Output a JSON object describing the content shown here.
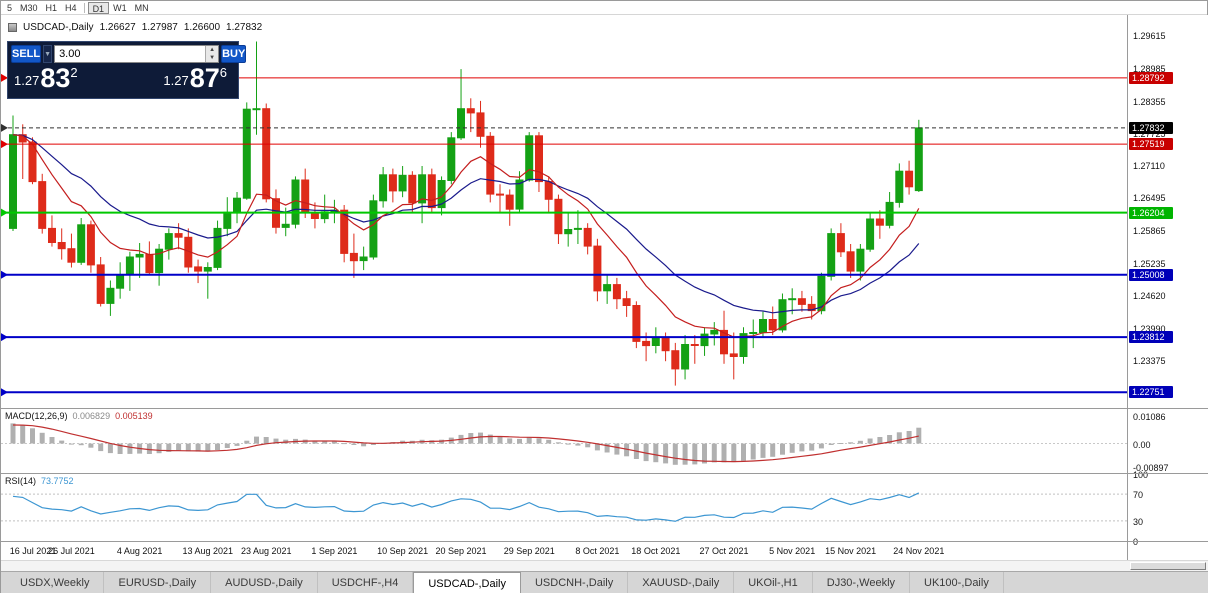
{
  "toolbar": {
    "periods": [
      {
        "label": "5"
      },
      {
        "label": "M30"
      },
      {
        "label": "H1"
      },
      {
        "label": "H4"
      },
      {
        "label": "D1",
        "active": true,
        "sep_before": true
      },
      {
        "label": "W1"
      },
      {
        "label": "MN"
      }
    ]
  },
  "chart_header": {
    "symbol": "USDCAD-,Daily",
    "open": "1.26627",
    "high": "1.27987",
    "low": "1.26600",
    "close": "1.27832"
  },
  "trade_panel": {
    "sell_label": "SELL",
    "buy_label": "BUY",
    "volume": "3.00",
    "bid": {
      "head": "1.27",
      "big": "83",
      "sup": "2"
    },
    "ask": {
      "head": "1.27",
      "big": "87",
      "sup": "6"
    }
  },
  "price_axis": {
    "labels": [
      "1.29615",
      "1.28985",
      "1.28355",
      "1.27725",
      "1.27110",
      "1.26495",
      "1.25865",
      "1.25235",
      "1.24620",
      "1.23990",
      "1.23375",
      "1.22745"
    ],
    "badges": [
      {
        "text": "1.28792",
        "color": "#C80000"
      },
      {
        "text": "1.27832",
        "color": "#000000"
      },
      {
        "text": "1.27519",
        "color": "#C80000"
      },
      {
        "text": "1.26204",
        "color": "#00B400"
      },
      {
        "text": "1.25008",
        "color": "#0000B8"
      },
      {
        "text": "1.23812",
        "color": "#0000B8"
      },
      {
        "text": "1.22751",
        "color": "#0000B8"
      }
    ]
  },
  "macd_panel": {
    "title": "MACD(12,26,9)",
    "value_main": "0.006829",
    "value_signal": "0.005139",
    "axis": [
      "0.01086",
      "0.00",
      "-0.00897"
    ]
  },
  "rsi_panel": {
    "title": "RSI(14)",
    "value": "73.7752",
    "axis": [
      "100",
      "70",
      "30",
      "0"
    ]
  },
  "x_axis": {
    "labels": [
      {
        "text": "16 Jul 2021",
        "i": 0
      },
      {
        "text": "26 Jul 2021",
        "i": 6
      },
      {
        "text": "4 Aug 2021",
        "i": 13
      },
      {
        "text": "13 Aug 2021",
        "i": 20
      },
      {
        "text": "23 Aug 2021",
        "i": 26
      },
      {
        "text": "1 Sep 2021",
        "i": 33
      },
      {
        "text": "10 Sep 2021",
        "i": 40
      },
      {
        "text": "20 Sep 2021",
        "i": 46
      },
      {
        "text": "29 Sep 2021",
        "i": 53
      },
      {
        "text": "8 Oct 2021",
        "i": 60
      },
      {
        "text": "18 Oct 2021",
        "i": 66
      },
      {
        "text": "27 Oct 2021",
        "i": 73
      },
      {
        "text": "5 Nov 2021",
        "i": 80
      },
      {
        "text": "15 Nov 2021",
        "i": 86
      },
      {
        "text": "24 Nov 2021",
        "i": 93
      }
    ]
  },
  "tabs": [
    {
      "label": "USDX,Weekly"
    },
    {
      "label": "EURUSD-,Daily"
    },
    {
      "label": "AUDUSD-,Daily"
    },
    {
      "label": "USDCHF-,H4"
    },
    {
      "label": "USDCAD-,Daily",
      "active": true
    },
    {
      "label": "USDCNH-,Daily"
    },
    {
      "label": "XAUUSD-,Daily"
    },
    {
      "label": "UKOil-,H1"
    },
    {
      "label": "DJ30-,Weekly"
    },
    {
      "label": "UK100-,Daily"
    }
  ],
  "colors": {
    "candle_up": "#14A114",
    "candle_down": "#DE2B1A",
    "macd_hist": "#B0B0B0",
    "macd_signal": "#C03030",
    "rsi_line": "#3C96D2"
  },
  "chart_data": {
    "type": "candlestick",
    "symbol": "USDCAD",
    "timeframe": "Daily",
    "title": "USDCAD-,Daily",
    "ylim": [
      1.2245,
      1.3
    ],
    "macd_range": [
      -0.0115,
      0.0135
    ],
    "levels": [
      {
        "price": 1.28792,
        "color": "#E00000",
        "width": 1
      },
      {
        "price": 1.27832,
        "color": "#303030",
        "width": 1,
        "dash": true
      },
      {
        "price": 1.27519,
        "color": "#E00000",
        "width": 1
      },
      {
        "price": 1.26204,
        "color": "#00C800",
        "width": 2
      },
      {
        "price": 1.25008,
        "color": "#0000C8",
        "width": 2
      },
      {
        "price": 1.23812,
        "color": "#0000C8",
        "width": 2
      },
      {
        "price": 1.22751,
        "color": "#0000C8",
        "width": 2
      }
    ],
    "indicators": {
      "ma_fast": {
        "period": 10,
        "color": "#C41E1E"
      },
      "ma_slow": {
        "period": 21,
        "color": "#1A1A8C"
      },
      "macd": {
        "fast": 12,
        "slow": 26,
        "signal": 9
      },
      "rsi": {
        "period": 14
      }
    },
    "ohlc": [
      [
        1.259,
        1.2807,
        1.2585,
        1.277
      ],
      [
        1.277,
        1.279,
        1.2685,
        1.2756
      ],
      [
        1.2756,
        1.2765,
        1.2675,
        1.268
      ],
      [
        1.268,
        1.2695,
        1.258,
        1.259
      ],
      [
        1.259,
        1.2615,
        1.2555,
        1.2563
      ],
      [
        1.2563,
        1.259,
        1.253,
        1.2551
      ],
      [
        1.2551,
        1.258,
        1.2515,
        1.2525
      ],
      [
        1.2525,
        1.261,
        1.252,
        1.2597
      ],
      [
        1.2597,
        1.2605,
        1.2505,
        1.252
      ],
      [
        1.252,
        1.2535,
        1.244,
        1.2446
      ],
      [
        1.2446,
        1.249,
        1.2422,
        1.2475
      ],
      [
        1.2475,
        1.2525,
        1.2455,
        1.2501
      ],
      [
        1.2501,
        1.2545,
        1.247,
        1.2535
      ],
      [
        1.2535,
        1.2562,
        1.2495,
        1.254
      ],
      [
        1.254,
        1.2565,
        1.25,
        1.2505
      ],
      [
        1.2505,
        1.256,
        1.248,
        1.255
      ],
      [
        1.255,
        1.259,
        1.253,
        1.258
      ],
      [
        1.258,
        1.26,
        1.255,
        1.2573
      ],
      [
        1.2573,
        1.259,
        1.2505,
        1.2516
      ],
      [
        1.2516,
        1.253,
        1.2485,
        1.2508
      ],
      [
        1.2508,
        1.2525,
        1.2455,
        1.2515
      ],
      [
        1.2515,
        1.2605,
        1.251,
        1.259
      ],
      [
        1.259,
        1.265,
        1.2575,
        1.2621
      ],
      [
        1.2621,
        1.266,
        1.26,
        1.2648
      ],
      [
        1.2648,
        1.2832,
        1.2645,
        1.2819
      ],
      [
        1.2819,
        1.2949,
        1.277,
        1.282
      ],
      [
        1.282,
        1.283,
        1.264,
        1.2647
      ],
      [
        1.2647,
        1.2665,
        1.258,
        1.2592
      ],
      [
        1.2592,
        1.263,
        1.2575,
        1.2598
      ],
      [
        1.2598,
        1.269,
        1.259,
        1.2683
      ],
      [
        1.2683,
        1.2705,
        1.261,
        1.262
      ],
      [
        1.262,
        1.264,
        1.259,
        1.2609
      ],
      [
        1.2609,
        1.2655,
        1.26,
        1.2622
      ],
      [
        1.2622,
        1.2645,
        1.26,
        1.2625
      ],
      [
        1.2625,
        1.2635,
        1.2525,
        1.2542
      ],
      [
        1.2542,
        1.258,
        1.2495,
        1.2528
      ],
      [
        1.2528,
        1.2555,
        1.251,
        1.2535
      ],
      [
        1.2535,
        1.2655,
        1.253,
        1.2643
      ],
      [
        1.2643,
        1.2708,
        1.263,
        1.2693
      ],
      [
        1.2693,
        1.2705,
        1.264,
        1.2662
      ],
      [
        1.2662,
        1.271,
        1.265,
        1.2692
      ],
      [
        1.2692,
        1.27,
        1.262,
        1.2639
      ],
      [
        1.2639,
        1.271,
        1.26,
        1.2693
      ],
      [
        1.2693,
        1.2705,
        1.262,
        1.263
      ],
      [
        1.263,
        1.269,
        1.2615,
        1.2682
      ],
      [
        1.2682,
        1.2775,
        1.2675,
        1.2764
      ],
      [
        1.2764,
        1.2896,
        1.276,
        1.282
      ],
      [
        1.282,
        1.284,
        1.2775,
        1.2812
      ],
      [
        1.2812,
        1.2835,
        1.2745,
        1.2767
      ],
      [
        1.2767,
        1.2775,
        1.264,
        1.2656
      ],
      [
        1.2656,
        1.2675,
        1.262,
        1.2654
      ],
      [
        1.2654,
        1.2665,
        1.2595,
        1.2627
      ],
      [
        1.2627,
        1.27,
        1.262,
        1.2683
      ],
      [
        1.2683,
        1.2775,
        1.268,
        1.2768
      ],
      [
        1.2768,
        1.2775,
        1.266,
        1.268
      ],
      [
        1.268,
        1.269,
        1.262,
        1.2646
      ],
      [
        1.2646,
        1.2655,
        1.256,
        1.258
      ],
      [
        1.258,
        1.262,
        1.2555,
        1.2588
      ],
      [
        1.2588,
        1.2625,
        1.256,
        1.259
      ],
      [
        1.259,
        1.26,
        1.254,
        1.2556
      ],
      [
        1.2556,
        1.257,
        1.245,
        1.247
      ],
      [
        1.247,
        1.25,
        1.2445,
        1.2482
      ],
      [
        1.2482,
        1.2495,
        1.2435,
        1.2455
      ],
      [
        1.2455,
        1.247,
        1.242,
        1.2442
      ],
      [
        1.2442,
        1.245,
        1.236,
        1.2373
      ],
      [
        1.2373,
        1.239,
        1.2335,
        1.2365
      ],
      [
        1.2365,
        1.24,
        1.235,
        1.238
      ],
      [
        1.238,
        1.239,
        1.2335,
        1.2355
      ],
      [
        1.2355,
        1.237,
        1.2288,
        1.232
      ],
      [
        1.232,
        1.2385,
        1.23,
        1.2367
      ],
      [
        1.2367,
        1.2385,
        1.233,
        1.2365
      ],
      [
        1.2365,
        1.24,
        1.2345,
        1.2387
      ],
      [
        1.2387,
        1.241,
        1.2365,
        1.2394
      ],
      [
        1.2394,
        1.2432,
        1.233,
        1.2349
      ],
      [
        1.2349,
        1.239,
        1.23,
        1.2344
      ],
      [
        1.2344,
        1.24,
        1.233,
        1.2388
      ],
      [
        1.2388,
        1.2415,
        1.236,
        1.239
      ],
      [
        1.239,
        1.243,
        1.238,
        1.2415
      ],
      [
        1.2415,
        1.244,
        1.2385,
        1.2395
      ],
      [
        1.2395,
        1.2465,
        1.239,
        1.2453
      ],
      [
        1.2453,
        1.2475,
        1.2425,
        1.2455
      ],
      [
        1.2455,
        1.247,
        1.243,
        1.2444
      ],
      [
        1.2444,
        1.246,
        1.2415,
        1.2432
      ],
      [
        1.2432,
        1.2505,
        1.2425,
        1.2498
      ],
      [
        1.2498,
        1.259,
        1.249,
        1.258
      ],
      [
        1.258,
        1.26,
        1.2535,
        1.2545
      ],
      [
        1.2545,
        1.256,
        1.2495,
        1.2508
      ],
      [
        1.2508,
        1.256,
        1.249,
        1.255
      ],
      [
        1.255,
        1.262,
        1.2545,
        1.2608
      ],
      [
        1.2608,
        1.2625,
        1.257,
        1.2596
      ],
      [
        1.2596,
        1.266,
        1.259,
        1.264
      ],
      [
        1.264,
        1.2715,
        1.263,
        1.27
      ],
      [
        1.27,
        1.272,
        1.2655,
        1.267
      ],
      [
        1.26627,
        1.27987,
        1.266,
        1.27832
      ]
    ]
  }
}
